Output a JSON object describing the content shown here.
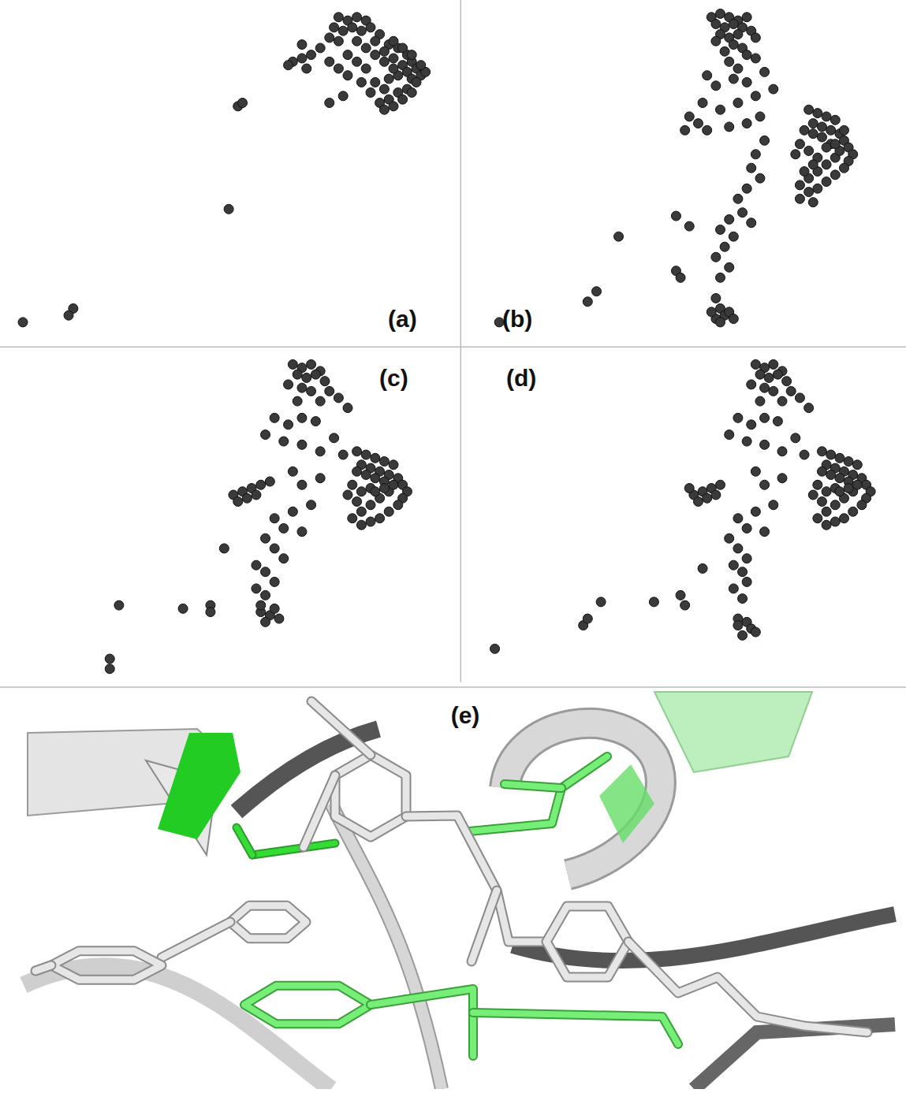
{
  "chart_data": [
    {
      "type": "scatter",
      "title": "(a)",
      "xlim": [
        0,
        100
      ],
      "ylim": [
        0,
        100
      ],
      "tick_labels": false,
      "color": "#3a3a3a",
      "marker": "circle",
      "x": [
        74,
        76,
        78,
        80,
        73,
        75,
        77,
        79,
        81,
        83,
        72,
        74,
        78,
        82,
        85,
        87,
        89,
        90,
        91,
        92,
        93,
        92,
        90,
        88,
        86,
        84,
        86,
        88,
        89,
        90,
        91,
        89,
        87,
        85,
        83,
        86,
        88,
        90,
        84,
        82,
        85,
        87,
        80,
        78,
        76,
        70,
        68,
        66,
        64,
        67,
        72,
        74,
        76,
        79,
        81,
        84,
        66,
        63,
        86,
        84,
        82,
        80,
        52,
        53,
        50,
        72,
        75,
        16,
        15,
        5
      ],
      "y": [
        95,
        94,
        95,
        94,
        92,
        91,
        92,
        91,
        92,
        90,
        89,
        88,
        88,
        88,
        87,
        86,
        84,
        82,
        80,
        78,
        79,
        81,
        84,
        86,
        88,
        85,
        83,
        81,
        79,
        77,
        76,
        74,
        73,
        71,
        70,
        69,
        71,
        73,
        74,
        76,
        77,
        78,
        80,
        82,
        84,
        86,
        84,
        83,
        82,
        80,
        82,
        80,
        78,
        76,
        73,
        68,
        87,
        81,
        80,
        82,
        84,
        86,
        69,
        70,
        39,
        70,
        72,
        10,
        8,
        6
      ]
    },
    {
      "type": "scatter",
      "title": "(b)",
      "xlim": [
        0,
        100
      ],
      "ylim": [
        0,
        100
      ],
      "tick_labels": false,
      "color": "#3a3a3a",
      "marker": "circle",
      "x": [
        56,
        58,
        60,
        62,
        64,
        57,
        59,
        61,
        63,
        65,
        58,
        60,
        62,
        66,
        57,
        61,
        63,
        59,
        64,
        60,
        66,
        62,
        55,
        57,
        61,
        64,
        68,
        70,
        66,
        54,
        58,
        62,
        51,
        53,
        50,
        55,
        60,
        64,
        67,
        68,
        66,
        65,
        67,
        64,
        62,
        63,
        65,
        60,
        58,
        61,
        59,
        57,
        60,
        58,
        57,
        58,
        59,
        57,
        60,
        58,
        56,
        61,
        78,
        80,
        82,
        84,
        79,
        81,
        83,
        85,
        86,
        87,
        88,
        87,
        86,
        84,
        82,
        80,
        78,
        76,
        78,
        80,
        82,
        84,
        85,
        83,
        81,
        79,
        77,
        76,
        78,
        80,
        82,
        79,
        77,
        75,
        84,
        86,
        76,
        79,
        8,
        28,
        30,
        35,
        48,
        51,
        48,
        49
      ],
      "y": [
        95,
        96,
        95,
        94,
        95,
        93,
        92,
        93,
        92,
        91,
        90,
        89,
        90,
        89,
        88,
        87,
        86,
        85,
        84,
        82,
        83,
        80,
        78,
        75,
        77,
        76,
        79,
        74,
        72,
        70,
        68,
        70,
        66,
        64,
        62,
        62,
        63,
        64,
        66,
        59,
        55,
        51,
        48,
        45,
        42,
        38,
        35,
        36,
        33,
        31,
        28,
        25,
        22,
        19,
        13,
        10,
        8,
        7,
        9,
        6,
        9,
        7,
        68,
        67,
        66,
        65,
        64,
        63,
        62,
        61,
        59,
        57,
        55,
        53,
        51,
        49,
        47,
        45,
        44,
        46,
        48,
        50,
        52,
        54,
        56,
        58,
        60,
        61,
        62,
        58,
        56,
        54,
        57,
        52,
        50,
        55,
        58,
        62,
        42,
        41,
        6,
        12,
        15,
        31,
        37,
        34,
        21,
        19
      ]
    },
    {
      "type": "scatter",
      "title": "(c)",
      "xlim": [
        0,
        100
      ],
      "ylim": [
        0,
        100
      ],
      "tick_labels": false,
      "color": "#3a3a3a",
      "marker": "circle",
      "x": [
        64,
        66,
        68,
        70,
        65,
        67,
        69,
        71,
        63,
        66,
        68,
        72,
        74,
        70,
        65,
        76,
        60,
        63,
        66,
        69,
        58,
        62,
        66,
        70,
        73,
        75,
        51,
        53,
        55,
        57,
        59,
        52,
        54,
        56,
        78,
        80,
        82,
        84,
        86,
        79,
        81,
        83,
        85,
        87,
        88,
        89,
        88,
        87,
        85,
        83,
        81,
        79,
        77,
        79,
        81,
        83,
        85,
        86,
        84,
        82,
        80,
        78,
        77,
        79,
        81,
        78,
        76,
        84,
        82,
        64,
        66,
        70,
        68,
        64,
        60,
        62,
        66,
        58,
        60,
        62,
        56,
        58,
        60,
        56,
        58,
        57,
        59,
        60,
        58,
        61,
        57,
        49,
        26,
        40,
        46,
        46,
        24,
        24
      ],
      "y": [
        96,
        95,
        96,
        94,
        93,
        92,
        93,
        91,
        90,
        89,
        88,
        88,
        86,
        85,
        85,
        83,
        80,
        78,
        80,
        79,
        75,
        73,
        72,
        70,
        74,
        69,
        57,
        58,
        59,
        60,
        61,
        55,
        56,
        57,
        70,
        69,
        68,
        67,
        66,
        66,
        65,
        64,
        63,
        62,
        60,
        58,
        56,
        54,
        52,
        50,
        49,
        48,
        50,
        52,
        54,
        56,
        58,
        60,
        61,
        62,
        63,
        64,
        60,
        58,
        59,
        55,
        57,
        59,
        58,
        64,
        60,
        62,
        54,
        52,
        50,
        47,
        46,
        44,
        41,
        38,
        36,
        34,
        31,
        29,
        27,
        22,
        21,
        23,
        19,
        20,
        24,
        41,
        24,
        23,
        24,
        22,
        8,
        5
      ]
    },
    {
      "type": "scatter",
      "title": "(d)",
      "xlim": [
        0,
        100
      ],
      "ylim": [
        0,
        100
      ],
      "tick_labels": false,
      "color": "#3a3a3a",
      "marker": "circle",
      "x": [
        66,
        68,
        70,
        72,
        67,
        69,
        71,
        73,
        65,
        68,
        70,
        74,
        76,
        72,
        67,
        78,
        62,
        65,
        68,
        71,
        60,
        64,
        68,
        72,
        75,
        77,
        52,
        54,
        56,
        58,
        53,
        55,
        57,
        51,
        81,
        83,
        85,
        87,
        89,
        82,
        84,
        86,
        88,
        90,
        91,
        92,
        91,
        90,
        88,
        86,
        84,
        82,
        80,
        82,
        84,
        86,
        88,
        89,
        87,
        85,
        83,
        81,
        80,
        82,
        84,
        81,
        79,
        87,
        85,
        66,
        68,
        72,
        70,
        66,
        62,
        64,
        68,
        60,
        62,
        64,
        61,
        63,
        64,
        61,
        63,
        62,
        64,
        65,
        63,
        66,
        62,
        54,
        7,
        27,
        28,
        31,
        43,
        49,
        50
      ],
      "y": [
        96,
        95,
        96,
        94,
        93,
        92,
        93,
        91,
        90,
        89,
        88,
        88,
        86,
        85,
        85,
        83,
        80,
        78,
        80,
        79,
        75,
        73,
        72,
        70,
        74,
        69,
        57,
        58,
        59,
        60,
        55,
        56,
        57,
        59,
        70,
        69,
        68,
        67,
        66,
        66,
        65,
        64,
        63,
        62,
        60,
        58,
        56,
        54,
        52,
        50,
        49,
        48,
        50,
        52,
        54,
        56,
        58,
        60,
        61,
        62,
        63,
        64,
        60,
        58,
        59,
        55,
        57,
        59,
        58,
        64,
        60,
        62,
        54,
        52,
        50,
        47,
        46,
        44,
        41,
        38,
        36,
        34,
        31,
        29,
        26,
        20,
        19,
        17,
        15,
        16,
        18,
        35,
        11,
        18,
        20,
        25,
        25,
        27,
        24
      ]
    }
  ],
  "illustration": {
    "label": "(e)"
  }
}
